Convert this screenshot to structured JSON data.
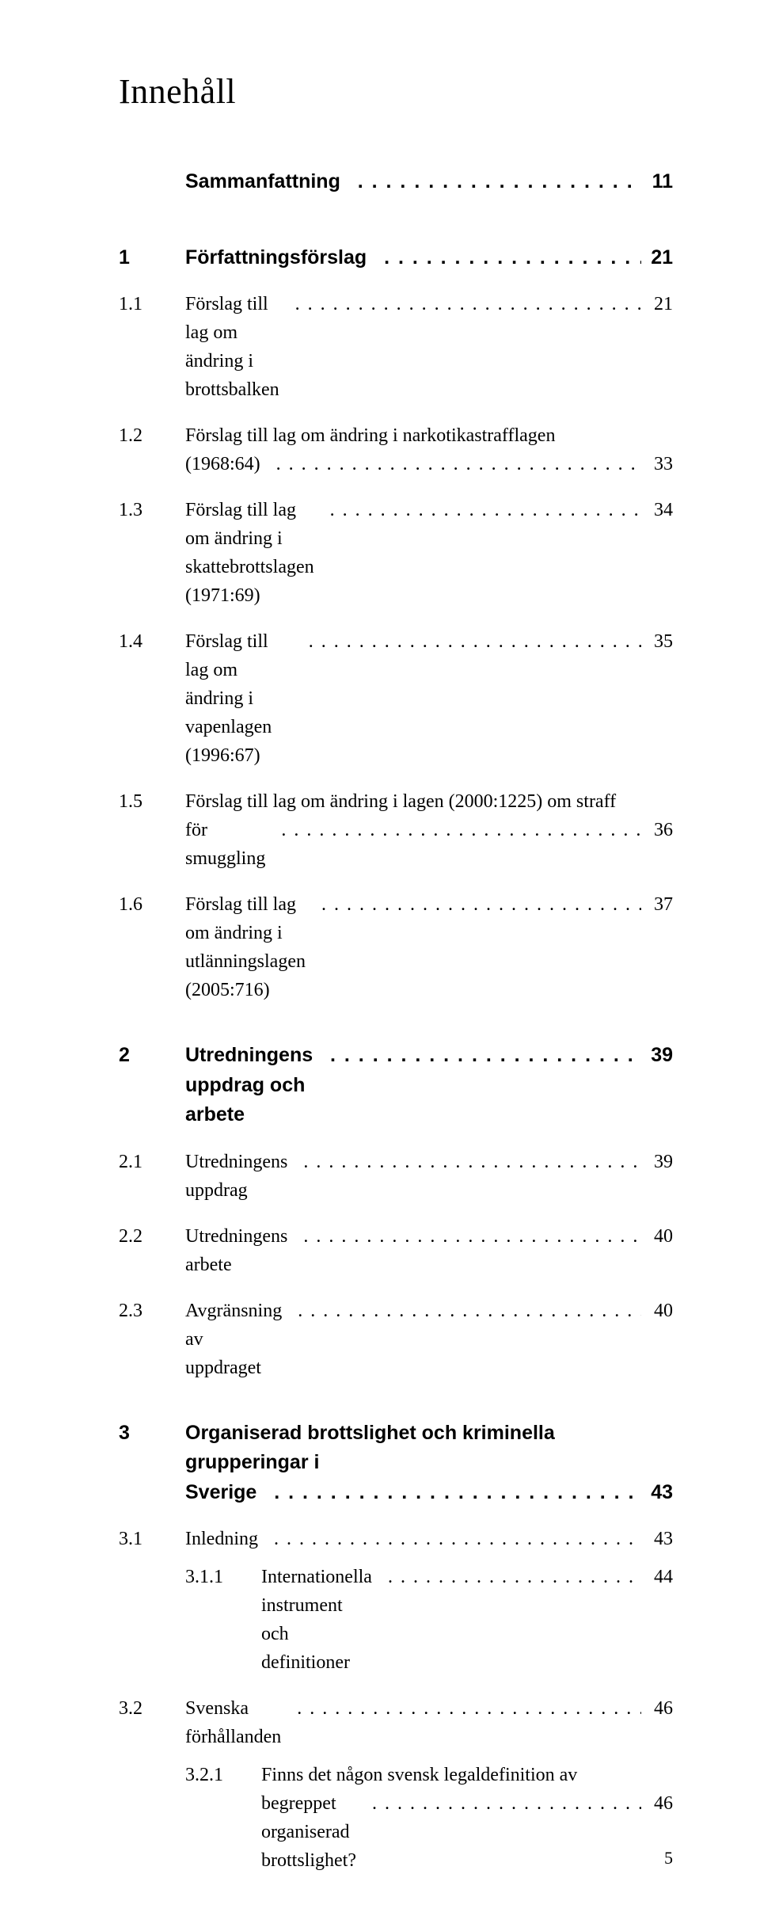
{
  "title": "Innehåll",
  "footer_page": "5",
  "entries": [
    {
      "type": "bold",
      "num": "",
      "label": "Sammanfattning",
      "page": "11",
      "gap_after": "lg"
    },
    {
      "type": "bold",
      "num": "1",
      "label": "Författningsförslag",
      "page": "21",
      "gap_after": "sm"
    },
    {
      "type": "normal",
      "num": "1.1",
      "label": "Förslag till lag om ändring i brottsbalken",
      "page": "21",
      "gap_after": "sm"
    },
    {
      "type": "multi",
      "num": "1.2",
      "label1": "Förslag till lag om ändring i narkotikastrafflagen",
      "label2": "(1968:64)",
      "page": "33",
      "gap_after": "sm"
    },
    {
      "type": "normal",
      "num": "1.3",
      "label": "Förslag till lag om ändring i skattebrottslagen (1971:69)",
      "page": "34",
      "gap_after": "sm"
    },
    {
      "type": "normal",
      "num": "1.4",
      "label": "Förslag till lag om ändring i vapenlagen (1996:67)",
      "page": "35",
      "gap_after": "sm"
    },
    {
      "type": "multi",
      "num": "1.5",
      "label1": "Förslag till lag om ändring i lagen (2000:1225) om straff",
      "label2": "för smuggling",
      "page": "36",
      "gap_after": "sm"
    },
    {
      "type": "normal",
      "num": "1.6",
      "label": "Förslag till lag om ändring i utlänningslagen (2005:716)",
      "page": "37",
      "gap_after": "md"
    },
    {
      "type": "bold",
      "num": "2",
      "label": "Utredningens uppdrag och arbete",
      "page": "39",
      "gap_after": "sm"
    },
    {
      "type": "normal",
      "num": "2.1",
      "label": "Utredningens uppdrag",
      "page": "39",
      "gap_after": "sm"
    },
    {
      "type": "normal",
      "num": "2.2",
      "label": "Utredningens arbete",
      "page": "40",
      "gap_after": "sm"
    },
    {
      "type": "normal",
      "num": "2.3",
      "label": "Avgränsning av uppdraget",
      "page": "40",
      "gap_after": "md"
    },
    {
      "type": "boldmulti",
      "num": "3",
      "label1": "Organiserad brottslighet och kriminella grupperingar i",
      "label2": "Sverige",
      "page": "43",
      "gap_after": "sm"
    },
    {
      "type": "normal",
      "num": "3.1",
      "label": "Inledning",
      "page": "43",
      "gap_after": ""
    },
    {
      "type": "sub2",
      "num": "3.1.1",
      "label": "Internationella instrument och definitioner",
      "page": "44",
      "gap_after": "sm"
    },
    {
      "type": "normal",
      "num": "3.2",
      "label": "Svenska förhållanden",
      "page": "46",
      "gap_after": ""
    },
    {
      "type": "sub2multi",
      "num": "3.2.1",
      "label1": "Finns det någon svensk legaldefinition av",
      "label2": "begreppet organiserad brottslighet?",
      "page": "46",
      "gap_after": ""
    }
  ]
}
